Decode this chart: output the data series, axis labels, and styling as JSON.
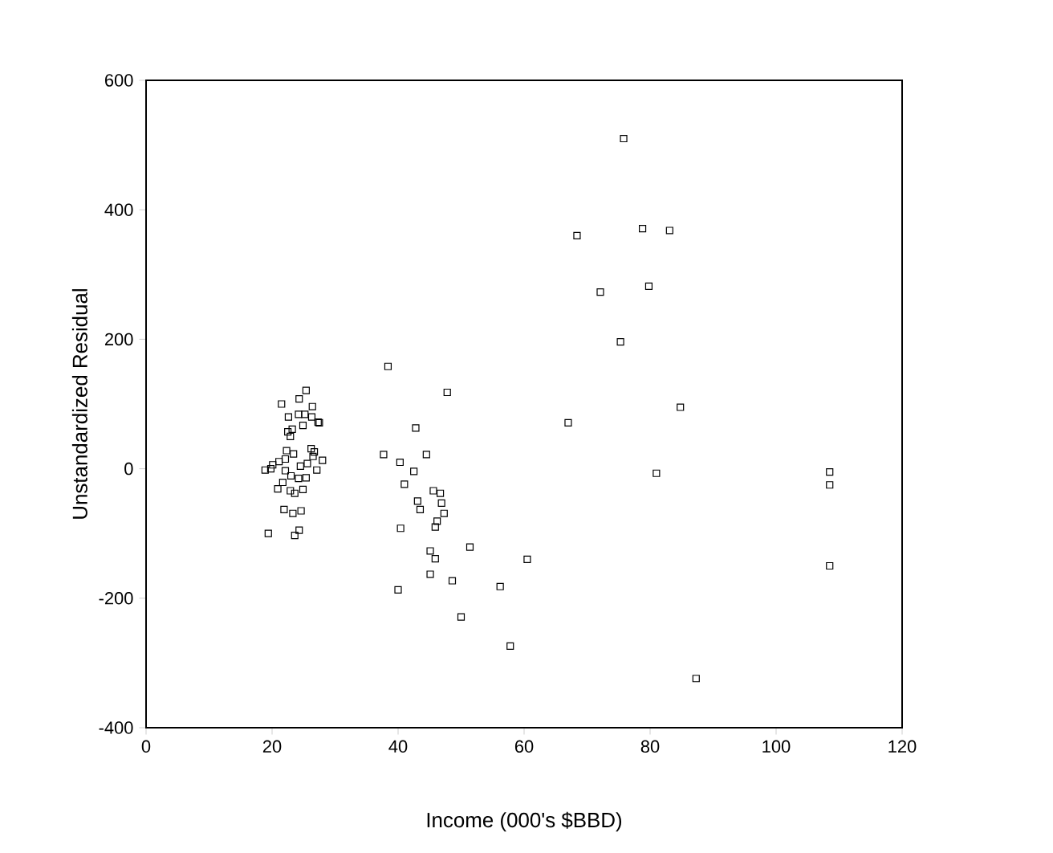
{
  "chart_data": {
    "type": "scatter",
    "xlabel": "Income (000's $BBD)",
    "ylabel": "Unstandardized Residual",
    "xlim": [
      0,
      120
    ],
    "ylim": [
      -400,
      600
    ],
    "xticks": [
      0,
      20,
      40,
      60,
      80,
      100,
      120
    ],
    "yticks": [
      -400,
      -200,
      0,
      200,
      400,
      600
    ],
    "grid": false,
    "marker": "square",
    "series": [
      {
        "color": "#000000",
        "x": [
          19.4,
          21.5,
          24.3,
          25.4,
          26.4,
          24.2,
          25.2,
          22.6,
          26.3,
          27.3,
          27.5,
          22.5,
          23.2,
          22.9,
          24.9,
          22.3,
          23.4,
          26.2,
          26.7,
          28.0,
          21.1,
          19.8,
          18.9,
          20.1,
          22.1,
          24.5,
          25.6,
          27.1,
          26.5,
          22.1,
          23.0,
          25.4,
          20.9,
          21.7,
          22.9,
          23.6,
          24.9,
          24.2,
          21.9,
          23.3,
          24.6,
          23.6,
          24.3,
          38.4,
          47.8,
          42.8,
          37.7,
          44.5,
          40.3,
          42.5,
          41.0,
          43.1,
          43.5,
          45.6,
          46.7,
          46.9,
          47.3,
          46.2,
          45.9,
          40.4,
          45.1,
          45.9,
          45.1,
          48.6,
          40.0,
          50.0,
          51.4,
          75.8,
          68.4,
          78.8,
          83.1,
          72.1,
          79.8,
          75.3,
          84.8,
          67.0,
          81.0,
          60.5,
          56.2,
          57.8,
          87.3,
          108.5,
          108.5,
          108.5
        ],
        "values": [
          -100,
          100,
          108,
          121,
          96,
          84,
          84,
          80,
          80,
          72,
          71,
          57,
          61,
          50,
          67,
          28,
          23,
          31,
          26,
          13,
          11,
          0,
          -2,
          6,
          15,
          4,
          8,
          -2,
          19,
          -3,
          -11,
          -14,
          -31,
          -21,
          -34,
          -38,
          -32,
          -15,
          -63,
          -69,
          -65,
          -103,
          -95,
          158,
          118,
          63,
          22,
          22,
          10,
          -4,
          -24,
          -50,
          -63,
          -34,
          -38,
          -53,
          -69,
          -81,
          -90,
          -92,
          -127,
          -139,
          -163,
          -173,
          -187,
          -229,
          -121,
          510,
          360,
          371,
          368,
          273,
          282,
          196,
          95,
          71,
          -7,
          -140,
          -182,
          -274,
          -324,
          -5,
          -25,
          -150
        ]
      }
    ]
  }
}
